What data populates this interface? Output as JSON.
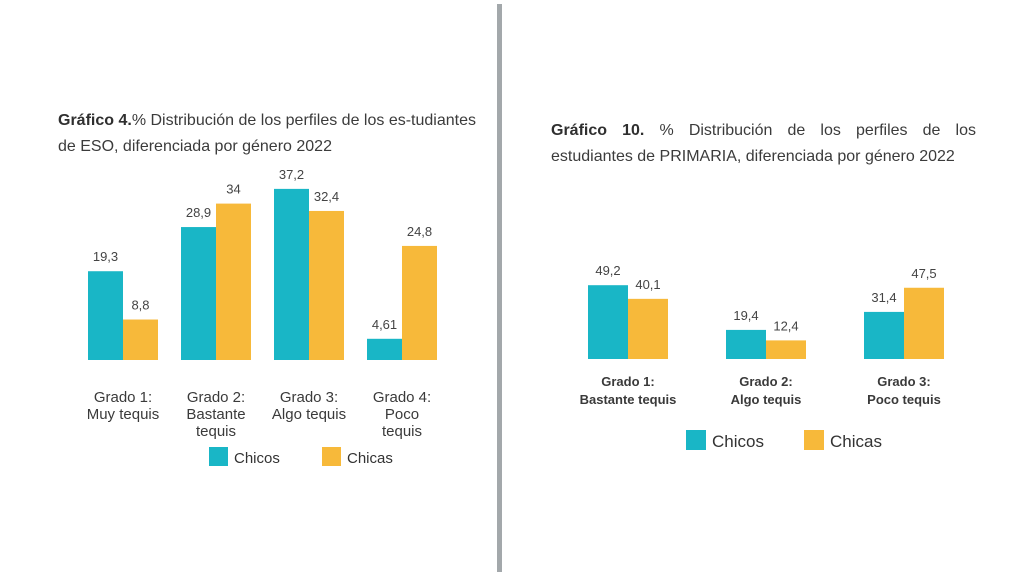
{
  "left_panel": {
    "title_bold": "Gráfico 4.",
    "title_rest": "% Distribución de los perfiles de los es-tudiantes de ESO, diferenciada por género 2022"
  },
  "right_panel": {
    "title_bold": "Gráfico 10.",
    "title_rest": " % Distribución de los perfiles de los estudiantes de PRIMARIA, diferenciada por género 2022"
  },
  "colors": {
    "chicos": "#19b6c6",
    "chicas": "#f7b93a"
  },
  "chart_data": [
    {
      "type": "bar",
      "title": "Gráfico 4.% Distribución de los perfiles de los estudiantes de ESO, diferenciada por género 2022",
      "categories": [
        [
          "Grado 1:",
          "Muy tequis"
        ],
        [
          "Grado 2:",
          "Bastante",
          "tequis"
        ],
        [
          "Grado 3:",
          "Algo tequis"
        ],
        [
          "Grado 4:",
          "Poco",
          "tequis"
        ]
      ],
      "series": [
        {
          "name": "Chicos",
          "values": [
            19.3,
            28.9,
            37.2,
            4.61
          ],
          "labels": [
            "19,3",
            "28,9",
            "37,2",
            "4,61"
          ]
        },
        {
          "name": "Chicas",
          "values": [
            8.8,
            34,
            32.4,
            24.8
          ],
          "labels": [
            "8,8",
            "34",
            "32,4",
            "24,8"
          ]
        }
      ],
      "legend": "bottom",
      "grid": false
    },
    {
      "type": "bar",
      "title": "Gráfico 10. % Distribución de los perfiles de los estudiantes de PRIMARIA, diferenciada por género 2022",
      "categories": [
        [
          "Grado 1:",
          "Bastante tequis"
        ],
        [
          "Grado 2:",
          "Algo tequis"
        ],
        [
          "Grado 3:",
          "Poco tequis"
        ]
      ],
      "series": [
        {
          "name": "Chicos",
          "values": [
            49.2,
            19.4,
            31.4
          ],
          "labels": [
            "49,2",
            "19,4",
            "31,4"
          ]
        },
        {
          "name": "Chicas",
          "values": [
            40.1,
            12.4,
            47.5
          ],
          "labels": [
            "40,1",
            "12,4",
            "47,5"
          ]
        }
      ],
      "legend": "bottom",
      "grid": false
    }
  ]
}
